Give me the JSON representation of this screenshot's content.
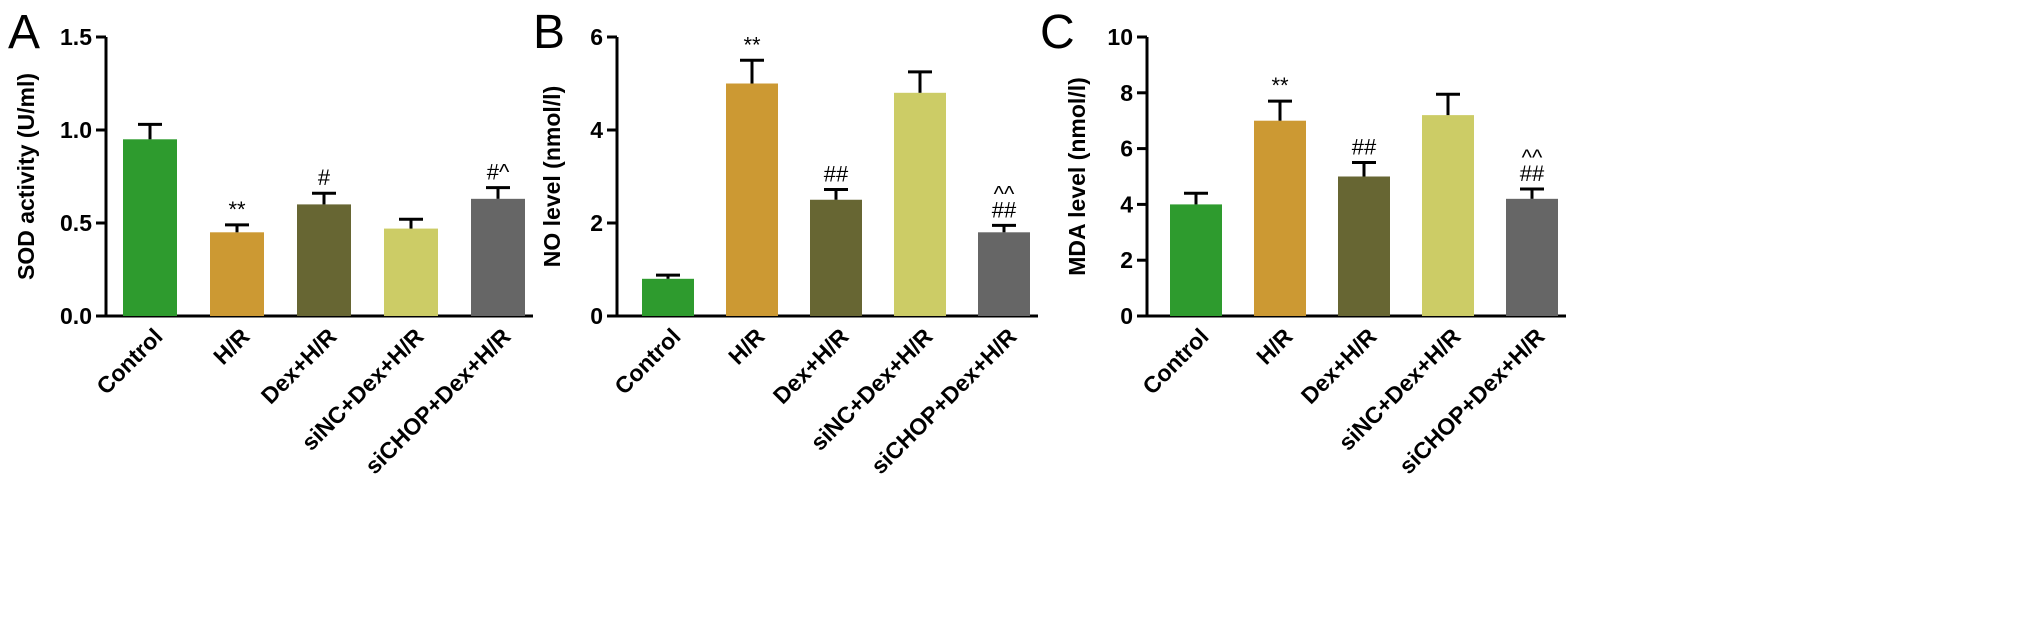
{
  "chart_data": [
    {
      "type": "bar",
      "panel_label": "A",
      "title": "",
      "xlabel": "",
      "ylabel": "SOD activity (U/ml)",
      "ylim": [
        0,
        1.5
      ],
      "yticks": [
        "0.0",
        "0.5",
        "1.0",
        "1.5"
      ],
      "categories": [
        "Control",
        "H/R",
        "Dex+H/R",
        "siNC+Dex+H/R",
        "siCHOP+Dex+H/R"
      ],
      "values": [
        0.95,
        0.45,
        0.6,
        0.47,
        0.63
      ],
      "errors": [
        0.08,
        0.04,
        0.06,
        0.05,
        0.06
      ],
      "annotations": [
        [
          "**"
        ],
        [
          "#"
        ],
        [],
        [
          "#^"
        ]
      ],
      "annotation_positions": [
        1,
        2,
        4
      ],
      "colors": [
        "#2e9b2e",
        "#cc9933",
        "#676633",
        "#cccc66",
        "#666666"
      ]
    },
    {
      "type": "bar",
      "panel_label": "B",
      "title": "",
      "xlabel": "",
      "ylabel": "NO level (nmol/l)",
      "ylim": [
        0,
        6
      ],
      "yticks": [
        "0",
        "2",
        "4",
        "6"
      ],
      "categories": [
        "Control",
        "H/R",
        "Dex+H/R",
        "siNC+Dex+H/R",
        "siCHOP+Dex+H/R"
      ],
      "values": [
        0.8,
        5.0,
        2.5,
        4.8,
        1.8
      ],
      "errors": [
        0.08,
        0.5,
        0.22,
        0.45,
        0.15
      ],
      "annotations": [
        [],
        [
          "**"
        ],
        [
          "##"
        ],
        [],
        [
          "^^",
          "##"
        ]
      ],
      "colors": [
        "#2e9b2e",
        "#cc9933",
        "#676633",
        "#cccc66",
        "#666666"
      ]
    },
    {
      "type": "bar",
      "panel_label": "C",
      "title": "",
      "xlabel": "",
      "ylabel": "MDA  level (nmol/l)",
      "ylim": [
        0,
        10
      ],
      "yticks": [
        "0",
        "2",
        "4",
        "6",
        "8",
        "10"
      ],
      "categories": [
        "Control",
        "H/R",
        "Dex+H/R",
        "siNC+Dex+H/R",
        "siCHOP+Dex+H/R"
      ],
      "values": [
        4.0,
        7.0,
        5.0,
        7.2,
        4.2
      ],
      "errors": [
        0.4,
        0.7,
        0.5,
        0.75,
        0.35
      ],
      "annotations": [
        [],
        [
          "**"
        ],
        [
          "##"
        ],
        [],
        [
          "^^",
          "##"
        ]
      ],
      "colors": [
        "#2e9b2e",
        "#cc9933",
        "#676633",
        "#cccc66",
        "#666666"
      ]
    }
  ]
}
